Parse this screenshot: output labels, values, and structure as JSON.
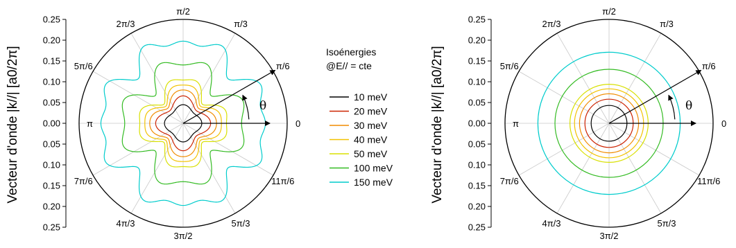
{
  "chart_data": [
    {
      "type": "polar-line",
      "ylabel": "Vecteur d'onde |k//|  [a0/2π]",
      "rlim": [
        0,
        0.25
      ],
      "radial_ticks": [
        "0.25",
        "0.20",
        "0.15",
        "0.10",
        "0.05",
        "0.00",
        "0.05",
        "0.10",
        "0.15",
        "0.20",
        "0.25"
      ],
      "angle_labels": [
        "0",
        "π/6",
        "π/3",
        "π/2",
        "2π/3",
        "5π/6",
        "π",
        "7π/6",
        "4π/3",
        "3π/2",
        "5π/3",
        "11π/6"
      ],
      "angle_symbol": "θ",
      "grid": true,
      "legend_title_line1": "Isoénergies",
      "legend_title_line2": "@E// = cte",
      "legend_placement": "right",
      "series": [
        {
          "name": "10 meV",
          "color": "#000000",
          "r0": 0.04,
          "m4": 0.12,
          "m8": 0.0,
          "m12": 0.0
        },
        {
          "name": "20 meV",
          "color": "#cc2200",
          "r0": 0.055,
          "m4": 0.2,
          "m8": 0.0,
          "m12": 0.0
        },
        {
          "name": "30 meV",
          "color": "#f08c00",
          "r0": 0.068,
          "m4": 0.21,
          "m8": 0.03,
          "m12": 0.0
        },
        {
          "name": "40 meV",
          "color": "#f2c200",
          "r0": 0.08,
          "m4": 0.21,
          "m8": 0.06,
          "m12": 0.0
        },
        {
          "name": "50 meV",
          "color": "#d8e000",
          "r0": 0.093,
          "m4": 0.21,
          "m8": 0.09,
          "m12": 0.0
        },
        {
          "name": "100 meV",
          "color": "#33bb22",
          "r0": 0.135,
          "m4": 0.15,
          "m8": 0.13,
          "m12": 0.02
        },
        {
          "name": "150 meV",
          "color": "#00cccc",
          "r0": 0.19,
          "m4": 0.06,
          "m8": 0.08,
          "m12": 0.06
        }
      ]
    },
    {
      "type": "polar-line",
      "ylabel": "Vecteur d'onde |k//|  [a0/2π]",
      "rlim": [
        0,
        0.25
      ],
      "radial_ticks": [
        "0.25",
        "0.20",
        "0.15",
        "0.10",
        "0.05",
        "0.00",
        "0.05",
        "0.10",
        "0.15",
        "0.20",
        "0.25"
      ],
      "angle_labels": [
        "0",
        "π/6",
        "π/3",
        "π/2",
        "2π/3",
        "5π/6",
        "π",
        "7π/6",
        "4π/3",
        "3π/2",
        "5π/3",
        "11π/6"
      ],
      "angle_symbol": "θ",
      "grid": true,
      "series": [
        {
          "name": "10 meV",
          "color": "#000000",
          "r": 0.043
        },
        {
          "name": "20 meV",
          "color": "#cc2200",
          "r": 0.058
        },
        {
          "name": "30 meV",
          "color": "#f08c00",
          "r": 0.071
        },
        {
          "name": "40 meV",
          "color": "#f2c200",
          "r": 0.083
        },
        {
          "name": "50 meV",
          "color": "#d8e000",
          "r": 0.094
        },
        {
          "name": "100 meV",
          "color": "#33bb22",
          "r": 0.13
        },
        {
          "name": "150 meV",
          "color": "#00cccc",
          "r": 0.171
        }
      ]
    }
  ]
}
